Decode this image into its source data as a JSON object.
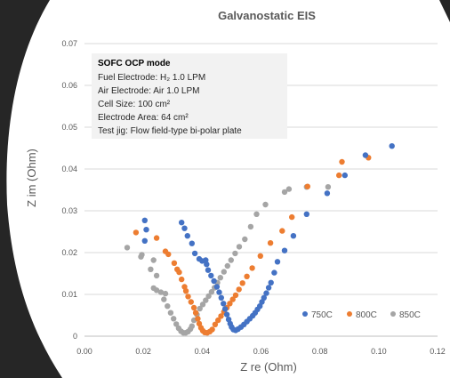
{
  "chart_data": {
    "type": "scatter",
    "title": "Galvanostatic EIS",
    "xlabel": "Z re (Ohm)",
    "ylabel": "Z im (Ohm)",
    "xlim": [
      0,
      0.12
    ],
    "ylim": [
      0,
      0.07
    ],
    "x_ticks": [
      "0.00",
      "0.02",
      "0.04",
      "0.06",
      "0.08",
      "0.10",
      "0.12"
    ],
    "y_ticks": [
      "0",
      "0.01",
      "0.02",
      "0.03",
      "0.04",
      "0.05",
      "0.06",
      "0.07"
    ],
    "grid": "horizontal",
    "legend_position": "bottom-right",
    "annotation": {
      "heading": "SOFC OCP mode",
      "lines": [
        "Fuel Electrode: H₂ 1.0 LPM",
        "Air Electrode: Air 1.0 LPM",
        "Cell Size: 100 cm²",
        "Electrode Area: 64 cm²",
        "Test jig: Flow field-type bi-polar plate"
      ]
    },
    "series": [
      {
        "name": "750C",
        "color": "#4472C4",
        "points": [
          [
            0.0205,
            0.0277
          ],
          [
            0.021,
            0.0255
          ],
          [
            0.0205,
            0.0228
          ],
          [
            0.033,
            0.0272
          ],
          [
            0.034,
            0.0258
          ],
          [
            0.035,
            0.024
          ],
          [
            0.0365,
            0.0222
          ],
          [
            0.0375,
            0.0198
          ],
          [
            0.039,
            0.0185
          ],
          [
            0.04,
            0.018
          ],
          [
            0.0412,
            0.0182
          ],
          [
            0.0415,
            0.0172
          ],
          [
            0.042,
            0.0158
          ],
          [
            0.043,
            0.0145
          ],
          [
            0.044,
            0.0132
          ],
          [
            0.045,
            0.0118
          ],
          [
            0.0458,
            0.0105
          ],
          [
            0.0465,
            0.0092
          ],
          [
            0.0472,
            0.0078
          ],
          [
            0.0478,
            0.0065
          ],
          [
            0.0484,
            0.0052
          ],
          [
            0.049,
            0.004
          ],
          [
            0.0495,
            0.003
          ],
          [
            0.05,
            0.0022
          ],
          [
            0.0506,
            0.0016
          ],
          [
            0.0514,
            0.0014
          ],
          [
            0.0522,
            0.0017
          ],
          [
            0.0532,
            0.0022
          ],
          [
            0.0542,
            0.0028
          ],
          [
            0.0552,
            0.0035
          ],
          [
            0.0562,
            0.0042
          ],
          [
            0.0572,
            0.0049
          ],
          [
            0.058,
            0.0056
          ],
          [
            0.0588,
            0.0064
          ],
          [
            0.0596,
            0.0072
          ],
          [
            0.0603,
            0.0082
          ],
          [
            0.061,
            0.0092
          ],
          [
            0.0618,
            0.0103
          ],
          [
            0.0626,
            0.0116
          ],
          [
            0.0634,
            0.0128
          ],
          [
            0.0645,
            0.0152
          ],
          [
            0.0656,
            0.0178
          ],
          [
            0.068,
            0.0205
          ],
          [
            0.071,
            0.024
          ],
          [
            0.0755,
            0.0292
          ],
          [
            0.0825,
            0.0342
          ],
          [
            0.0885,
            0.0385
          ],
          [
            0.0955,
            0.0433
          ],
          [
            0.1045,
            0.0455
          ]
        ]
      },
      {
        "name": "800C",
        "color": "#ED7D31",
        "points": [
          [
            0.0175,
            0.0248
          ],
          [
            0.0245,
            0.0235
          ],
          [
            0.0275,
            0.0203
          ],
          [
            0.0285,
            0.0196
          ],
          [
            0.0305,
            0.0175
          ],
          [
            0.0315,
            0.016
          ],
          [
            0.0322,
            0.0153
          ],
          [
            0.033,
            0.0136
          ],
          [
            0.034,
            0.0118
          ],
          [
            0.0345,
            0.0108
          ],
          [
            0.0352,
            0.0095
          ],
          [
            0.0362,
            0.0082
          ],
          [
            0.0372,
            0.0068
          ],
          [
            0.0378,
            0.0056
          ],
          [
            0.0385,
            0.0042
          ],
          [
            0.039,
            0.003
          ],
          [
            0.0396,
            0.002
          ],
          [
            0.0402,
            0.0013
          ],
          [
            0.0409,
            0.0009
          ],
          [
            0.0417,
            0.0008
          ],
          [
            0.0426,
            0.0011
          ],
          [
            0.0434,
            0.0016
          ],
          [
            0.0444,
            0.0028
          ],
          [
            0.0454,
            0.0038
          ],
          [
            0.0464,
            0.0048
          ],
          [
            0.0474,
            0.0058
          ],
          [
            0.0484,
            0.0068
          ],
          [
            0.0494,
            0.0078
          ],
          [
            0.0504,
            0.0088
          ],
          [
            0.0514,
            0.0098
          ],
          [
            0.0525,
            0.0112
          ],
          [
            0.0537,
            0.0127
          ],
          [
            0.0552,
            0.0143
          ],
          [
            0.057,
            0.0163
          ],
          [
            0.0598,
            0.0192
          ],
          [
            0.0632,
            0.0223
          ],
          [
            0.0672,
            0.0252
          ],
          [
            0.0705,
            0.0285
          ],
          [
            0.0758,
            0.0358
          ],
          [
            0.0865,
            0.0385
          ],
          [
            0.0875,
            0.0417
          ],
          [
            0.0965,
            0.0427
          ]
        ]
      },
      {
        "name": "850C",
        "color": "#A5A5A5",
        "points": [
          [
            0.0145,
            0.0212
          ],
          [
            0.0195,
            0.0195
          ],
          [
            0.0192,
            0.019
          ],
          [
            0.0235,
            0.0182
          ],
          [
            0.0225,
            0.016
          ],
          [
            0.0245,
            0.0145
          ],
          [
            0.0235,
            0.0115
          ],
          [
            0.0245,
            0.011
          ],
          [
            0.026,
            0.0105
          ],
          [
            0.0275,
            0.0102
          ],
          [
            0.027,
            0.0088
          ],
          [
            0.0282,
            0.0072
          ],
          [
            0.0293,
            0.0056
          ],
          [
            0.0303,
            0.0042
          ],
          [
            0.0312,
            0.0029
          ],
          [
            0.032,
            0.0019
          ],
          [
            0.0328,
            0.0012
          ],
          [
            0.0336,
            0.0008
          ],
          [
            0.0344,
            0.0008
          ],
          [
            0.0352,
            0.0011
          ],
          [
            0.036,
            0.0017
          ],
          [
            0.0365,
            0.0024
          ],
          [
            0.0372,
            0.0038
          ],
          [
            0.0382,
            0.0052
          ],
          [
            0.0392,
            0.0066
          ],
          [
            0.0402,
            0.0076
          ],
          [
            0.0412,
            0.0086
          ],
          [
            0.0422,
            0.0096
          ],
          [
            0.0432,
            0.0106
          ],
          [
            0.0442,
            0.0116
          ],
          [
            0.0452,
            0.0128
          ],
          [
            0.0462,
            0.014
          ],
          [
            0.0474,
            0.0154
          ],
          [
            0.0486,
            0.0168
          ],
          [
            0.0498,
            0.0182
          ],
          [
            0.0512,
            0.0198
          ],
          [
            0.0526,
            0.0214
          ],
          [
            0.0545,
            0.0232
          ],
          [
            0.0565,
            0.0262
          ],
          [
            0.0585,
            0.0292
          ],
          [
            0.0615,
            0.0315
          ],
          [
            0.068,
            0.0345
          ],
          [
            0.0695,
            0.0352
          ],
          [
            0.0755,
            0.0357
          ],
          [
            0.0828,
            0.0357
          ]
        ]
      }
    ]
  }
}
